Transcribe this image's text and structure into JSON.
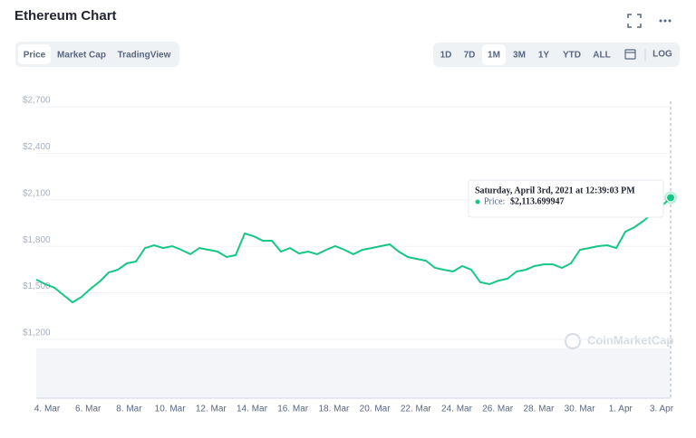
{
  "toolbar": {
    "tabs": [
      "Price",
      "Market Cap",
      "TradingView"
    ],
    "active_tab": 0,
    "ranges": [
      "1D",
      "7D",
      "1M",
      "3M",
      "1Y",
      "YTD",
      "ALL"
    ],
    "active_range": 2,
    "log": "LOG"
  },
  "watermark": "CoinMarketCap",
  "chart_data": {
    "type": "line",
    "title": "Ethereum Chart",
    "ylim": [
      1200,
      2700
    ],
    "yticks": [
      {
        "value": 1200,
        "label": "$1,200"
      },
      {
        "value": 1500,
        "label": "$1,500"
      },
      {
        "value": 1800,
        "label": "$1,800"
      },
      {
        "value": 2100,
        "label": "$2,100"
      },
      {
        "value": 2400,
        "label": "$2,400"
      },
      {
        "value": 2700,
        "label": "$2,700"
      }
    ],
    "x_labels": [
      "4. Mar",
      "6. Mar",
      "8. Mar",
      "10. Mar",
      "12. Mar",
      "14. Mar",
      "16. Mar",
      "18. Mar",
      "20. Mar",
      "22. Mar",
      "24. Mar",
      "26. Mar",
      "28. Mar",
      "30. Mar",
      "1. Apr",
      "3. Apr"
    ],
    "grid": true,
    "series": [
      {
        "name": "Price",
        "color": "#16c784",
        "values": [
          1585,
          1556,
          1533,
          1486,
          1439,
          1474,
          1527,
          1573,
          1632,
          1649,
          1690,
          1702,
          1789,
          1807,
          1789,
          1801,
          1778,
          1749,
          1789,
          1778,
          1766,
          1731,
          1743,
          1883,
          1865,
          1836,
          1836,
          1766,
          1789,
          1754,
          1766,
          1749,
          1778,
          1801,
          1778,
          1749,
          1778,
          1789,
          1801,
          1813,
          1766,
          1731,
          1719,
          1707,
          1661,
          1649,
          1638,
          1673,
          1649,
          1568,
          1556,
          1579,
          1591,
          1638,
          1649,
          1673,
          1684,
          1684,
          1661,
          1690,
          1778,
          1789,
          1801,
          1807,
          1789,
          1894,
          1923,
          1964,
          2011,
          2058,
          2113.699947
        ]
      }
    ],
    "tooltip": {
      "date": "Saturday, April 3rd, 2021 at 12:39:03 PM",
      "label": "Price:",
      "value": 2113.699947,
      "value_label": "$2,113.699947"
    }
  }
}
